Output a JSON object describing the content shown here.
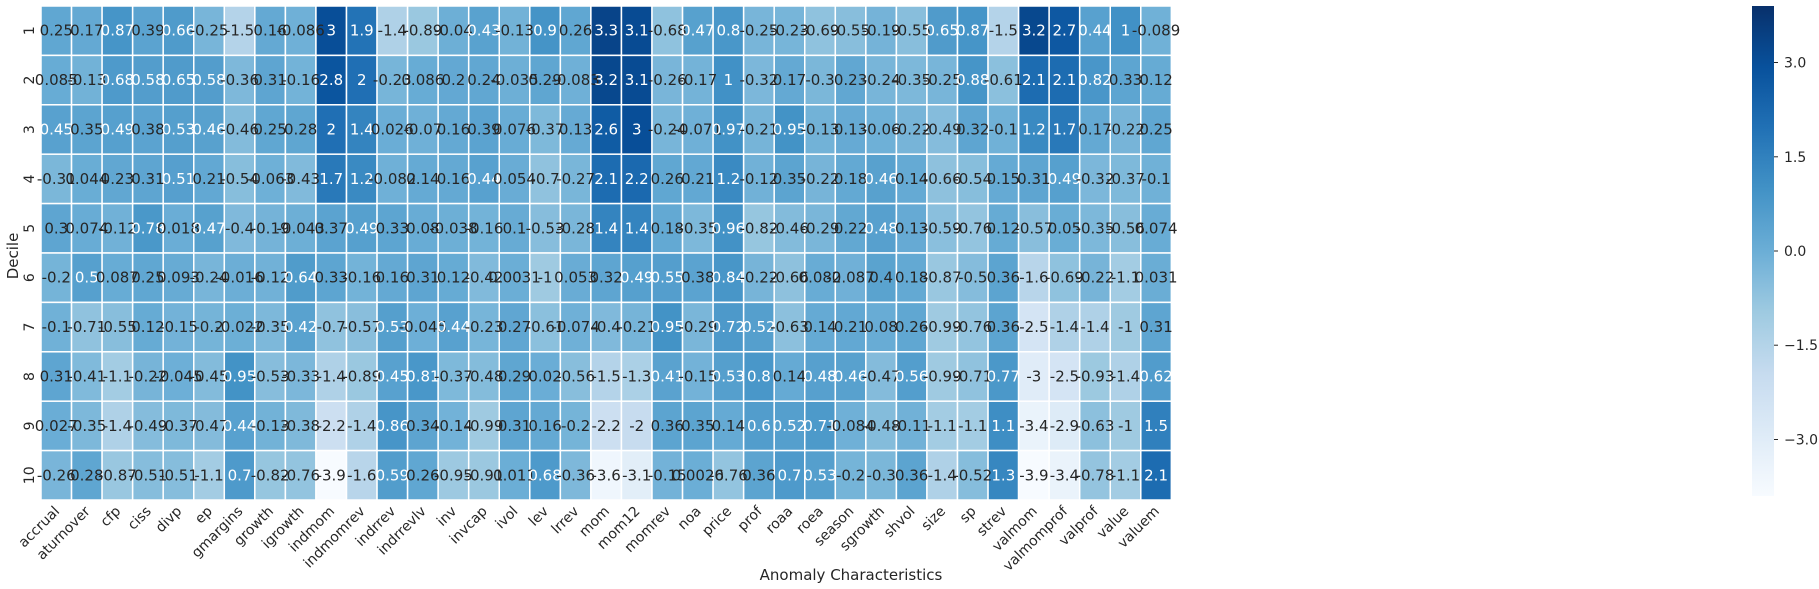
{
  "chart_data": {
    "type": "heatmap",
    "xlabel": "Anomaly Characteristics",
    "ylabel": "Decile",
    "rows": [
      "1",
      "2",
      "3",
      "4",
      "5",
      "6",
      "7",
      "8",
      "9",
      "10"
    ],
    "columns": [
      "accrual",
      "aturnover",
      "cfp",
      "ciss",
      "divp",
      "ep",
      "gmargins",
      "growth",
      "igrowth",
      "indmom",
      "indmomrev",
      "indrrev",
      "indrrevlv",
      "inv",
      "invcap",
      "ivol",
      "lev",
      "lrrev",
      "mom",
      "mom12",
      "momrev",
      "noa",
      "price",
      "prof",
      "roaa",
      "roea",
      "season",
      "sgrowth",
      "shvol",
      "size",
      "sp",
      "strev",
      "valmom",
      "valmomprof",
      "valprof",
      "value",
      "valuem"
    ],
    "values": [
      [
        0.25,
        0.17,
        0.87,
        0.39,
        0.66,
        -0.25,
        -1.5,
        0.16,
        -0.086,
        3,
        1.9,
        -1.4,
        -0.89,
        -0.04,
        0.43,
        -0.13,
        0.9,
        0.26,
        3.3,
        3.1,
        -0.68,
        0.47,
        0.8,
        -0.25,
        -0.23,
        -0.69,
        -0.55,
        -0.19,
        -0.55,
        0.65,
        0.87,
        -1.5,
        3.2,
        2.7,
        0.44,
        1,
        -0.089
      ],
      [
        0.085,
        -0.13,
        0.68,
        0.58,
        0.65,
        0.58,
        -0.36,
        0.31,
        -0.16,
        2.8,
        2,
        -0.23,
        0.086,
        0.2,
        0.24,
        -0.035,
        0.29,
        -0.083,
        3.2,
        3.1,
        -0.26,
        -0.17,
        1,
        -0.32,
        0.17,
        -0.3,
        0.23,
        -0.24,
        -0.35,
        -0.25,
        0.88,
        -0.61,
        2.1,
        2.1,
        0.82,
        0.33,
        0.12
      ],
      [
        0.45,
        0.35,
        0.49,
        0.38,
        0.53,
        0.46,
        -0.46,
        0.25,
        0.28,
        2,
        1.4,
        0.026,
        -0.07,
        0.16,
        0.39,
        0.076,
        -0.37,
        0.13,
        2.6,
        3,
        -0.24,
        -0.071,
        0.97,
        -0.21,
        0.95,
        -0.13,
        0.13,
        -0.06,
        -0.22,
        -0.49,
        0.32,
        -0.1,
        1.2,
        1.7,
        0.17,
        -0.22,
        0.25
      ],
      [
        -0.31,
        0.044,
        0.23,
        0.31,
        0.51,
        0.21,
        -0.54,
        -0.063,
        -0.43,
        1.7,
        1.2,
        -0.082,
        0.14,
        0.16,
        0.44,
        0.054,
        -0.7,
        -0.27,
        2.1,
        2.2,
        0.26,
        0.21,
        1.2,
        -0.12,
        0.35,
        -0.22,
        0.18,
        0.46,
        0.14,
        -0.66,
        -0.54,
        0.15,
        0.31,
        0.49,
        -0.32,
        -0.37,
        -0.1
      ],
      [
        0.3,
        0.074,
        -0.12,
        0.78,
        0.018,
        0.47,
        -0.4,
        -0.19,
        -0.043,
        0.37,
        0.49,
        0.33,
        0.08,
        -0.038,
        -0.16,
        0.1,
        -0.53,
        -0.28,
        1.4,
        1.4,
        0.18,
        -0.35,
        0.96,
        -0.82,
        -0.46,
        -0.29,
        0.22,
        0.48,
        0.13,
        -0.59,
        -0.76,
        0.12,
        -0.57,
        0.05,
        -0.35,
        -0.56,
        0.074
      ],
      [
        -0.2,
        0.5,
        0.087,
        0.25,
        0.093,
        -0.24,
        -0.016,
        -0.12,
        0.64,
        0.33,
        -0.16,
        0.16,
        0.31,
        0.12,
        -0.42,
        0.0031,
        -1,
        0.053,
        0.32,
        0.49,
        0.55,
        0.38,
        0.84,
        -0.22,
        -0.66,
        0.082,
        -0.087,
        0.4,
        0.18,
        -0.87,
        -0.5,
        0.36,
        -1.6,
        -0.69,
        -0.22,
        -1.1,
        0.031
      ],
      [
        -0.1,
        -0.71,
        -0.55,
        0.12,
        -0.15,
        -0.2,
        -0.022,
        -0.35,
        0.42,
        -0.7,
        -0.57,
        0.53,
        -0.045,
        0.44,
        -0.23,
        0.27,
        -0.61,
        -0.074,
        -0.4,
        -0.21,
        0.95,
        -0.29,
        0.72,
        0.52,
        -0.63,
        0.14,
        0.21,
        0.08,
        0.26,
        -0.99,
        -0.76,
        0.36,
        -2.5,
        -1.4,
        -1.4,
        -1,
        0.31
      ],
      [
        0.31,
        -0.41,
        -1.1,
        -0.22,
        -0.045,
        -0.45,
        0.95,
        -0.53,
        -0.33,
        -1.4,
        -0.89,
        0.45,
        0.81,
        -0.37,
        -0.48,
        0.29,
        0.02,
        -0.56,
        -1.5,
        -1.3,
        0.41,
        -0.15,
        0.53,
        0.8,
        0.14,
        0.48,
        0.46,
        -0.47,
        0.56,
        -0.99,
        -0.71,
        0.77,
        -3,
        -2.5,
        -0.93,
        -1.4,
        0.62
      ],
      [
        0.027,
        -0.35,
        -1.4,
        -0.49,
        -0.37,
        -0.47,
        0.44,
        -0.13,
        -0.38,
        -2.2,
        -1.4,
        0.86,
        0.34,
        -0.14,
        -0.99,
        0.31,
        0.16,
        -0.2,
        -2.2,
        -2,
        0.36,
        0.35,
        0.14,
        0.6,
        0.52,
        0.71,
        -0.084,
        -0.48,
        -0.11,
        -1.1,
        -1.1,
        1.1,
        -3.4,
        -2.9,
        -0.63,
        -1,
        1.5
      ],
      [
        -0.26,
        0.28,
        -0.87,
        -0.51,
        -0.51,
        -1.1,
        0.7,
        -0.82,
        -0.76,
        -3.9,
        -1.6,
        0.59,
        0.26,
        -0.95,
        -0.91,
        0.011,
        0.68,
        -0.36,
        -3.6,
        -3.1,
        -0.15,
        0.0026,
        -0.76,
        0.36,
        0.7,
        0.53,
        -0.2,
        -0.3,
        0.36,
        -1.4,
        -0.52,
        1.3,
        -3.9,
        -3.4,
        -0.78,
        -1.1,
        2.1
      ]
    ],
    "value_labels": [
      [
        "0.25",
        "0.17",
        "0.87",
        "0.39",
        "0.66",
        "-0.25",
        "-1.5",
        "0.16",
        "-0.086",
        "3",
        "1.9",
        "-1.4",
        "-0.89",
        "-0.04",
        "0.43",
        "-0.13",
        "0.9",
        "0.26",
        "3.3",
        "3.1",
        "-0.68",
        "0.47",
        "0.8",
        "-0.25",
        "-0.23",
        "-0.69",
        "-0.55",
        "-0.19",
        "-0.55",
        "0.65",
        "0.87",
        "-1.5",
        "3.2",
        "2.7",
        "0.44",
        "1",
        "-0.089"
      ],
      [
        "0.085",
        "-0.13",
        "0.68",
        "0.58",
        "0.65",
        "0.58",
        "-0.36",
        "0.31",
        "-0.16",
        "2.8",
        "2",
        "-0.23",
        "0.086",
        "0.2",
        "0.24",
        "-0.035",
        "0.29",
        "-0.083",
        "3.2",
        "3.1",
        "-0.26",
        "-0.17",
        "1",
        "-0.32",
        "0.17",
        "-0.3",
        "0.23",
        "-0.24",
        "-0.35",
        "-0.25",
        "0.88",
        "-0.61",
        "2.1",
        "2.1",
        "0.82",
        "0.33",
        "0.12"
      ],
      [
        "0.45",
        "0.35",
        "0.49",
        "0.38",
        "0.53",
        "0.46",
        "-0.46",
        "0.25",
        "0.28",
        "2",
        "1.4",
        "0.026",
        "-0.07",
        "0.16",
        "0.39",
        "0.076",
        "-0.37",
        "0.13",
        "2.6",
        "3",
        "-0.24",
        "-0.071",
        "0.97",
        "-0.21",
        "0.95",
        "-0.13",
        "0.13",
        "-0.06",
        "-0.22",
        "-0.49",
        "0.32",
        "-0.1",
        "1.2",
        "1.7",
        "0.17",
        "-0.22",
        "0.25"
      ],
      [
        "-0.31",
        "0.044",
        "0.23",
        "0.31",
        "0.51",
        "0.21",
        "-0.54",
        "-0.063",
        "-0.43",
        "1.7",
        "1.2",
        "-0.082",
        "0.14",
        "0.16",
        "0.44",
        "0.054",
        "-0.7",
        "-0.27",
        "2.1",
        "2.2",
        "0.26",
        "0.21",
        "1.2",
        "-0.12",
        "0.35",
        "-0.22",
        "0.18",
        "0.46",
        "0.14",
        "-0.66",
        "-0.54",
        "0.15",
        "0.31",
        "0.49",
        "-0.32",
        "-0.37",
        "-0.1"
      ],
      [
        "0.3",
        "0.074",
        "-0.12",
        "0.78",
        "0.018",
        "0.47",
        "-0.4",
        "-0.19",
        "-0.043",
        "0.37",
        "0.49",
        "0.33",
        "0.08",
        "-0.038",
        "-0.16",
        "0.1",
        "-0.53",
        "-0.28",
        "1.4",
        "1.4",
        "0.18",
        "-0.35",
        "0.96",
        "-0.82",
        "-0.46",
        "-0.29",
        "0.22",
        "0.48",
        "0.13",
        "-0.59",
        "-0.76",
        "0.12",
        "-0.57",
        "0.05",
        "-0.35",
        "-0.56",
        "0.074"
      ],
      [
        "-0.2",
        "0.5",
        "0.087",
        "0.25",
        "0.093",
        "-0.24",
        "-0.016",
        "-0.12",
        "0.64",
        "0.33",
        "-0.16",
        "0.16",
        "0.31",
        "0.12",
        "-0.42",
        "0.0031",
        "-1",
        "0.053",
        "0.32",
        "0.49",
        "0.55",
        "0.38",
        "0.84",
        "-0.22",
        "-0.66",
        "0.082",
        "-0.087",
        "0.4",
        "0.18",
        "-0.87",
        "-0.5",
        "0.36",
        "-1.6",
        "-0.69",
        "-0.22",
        "-1.1",
        "0.031"
      ],
      [
        "-0.1",
        "-0.71",
        "-0.55",
        "0.12",
        "-0.15",
        "-0.2",
        "-0.022",
        "-0.35",
        "0.42",
        "-0.7",
        "-0.57",
        "0.53",
        "-0.045",
        "0.44",
        "-0.23",
        "0.27",
        "-0.61",
        "-0.074",
        "-0.4",
        "-0.21",
        "0.95",
        "-0.29",
        "0.72",
        "0.52",
        "-0.63",
        "0.14",
        "0.21",
        "0.08",
        "0.26",
        "-0.99",
        "-0.76",
        "0.36",
        "-2.5",
        "-1.4",
        "-1.4",
        "-1",
        "0.31"
      ],
      [
        "0.31",
        "-0.41",
        "-1.1",
        "-0.22",
        "-0.045",
        "-0.45",
        "0.95",
        "-0.53",
        "-0.33",
        "-1.4",
        "-0.89",
        "0.45",
        "0.81",
        "-0.37",
        "-0.48",
        "0.29",
        "0.02",
        "-0.56",
        "-1.5",
        "-1.3",
        "0.41",
        "-0.15",
        "0.53",
        "0.8",
        "0.14",
        "0.48",
        "0.46",
        "-0.47",
        "0.56",
        "-0.99",
        "-0.71",
        "0.77",
        "-3",
        "-2.5",
        "-0.93",
        "-1.4",
        "0.62"
      ],
      [
        "0.027",
        "-0.35",
        "-1.4",
        "-0.49",
        "-0.37",
        "-0.47",
        "0.44",
        "-0.13",
        "-0.38",
        "-2.2",
        "-1.4",
        "0.86",
        "0.34",
        "-0.14",
        "-0.99",
        "0.31",
        "0.16",
        "-0.2",
        "-2.2",
        "-2",
        "0.36",
        "0.35",
        "0.14",
        "0.6",
        "0.52",
        "0.71",
        "-0.084",
        "-0.48",
        "-0.11",
        "-1.1",
        "-1.1",
        "1.1",
        "-3.4",
        "-2.9",
        "-0.63",
        "-1",
        "1.5"
      ],
      [
        "-0.26",
        "0.28",
        "-0.87",
        "-0.51",
        "-0.51",
        "-1.1",
        "0.7",
        "-0.82",
        "-0.76",
        "-3.9",
        "-1.6",
        "0.59",
        "0.26",
        "-0.95",
        "-0.91",
        "0.011",
        "0.68",
        "-0.36",
        "-3.6",
        "-3.1",
        "-0.15",
        "0.0026",
        "-0.76",
        "0.36",
        "0.7",
        "0.53",
        "-0.2",
        "-0.3",
        "0.36",
        "-1.4",
        "-0.52",
        "1.3",
        "-3.9",
        "-3.4",
        "-0.78",
        "-1.1",
        "2.1"
      ]
    ],
    "colorbar": {
      "vmin": -3.9,
      "vmax": 3.9,
      "ticks": [
        3.0,
        1.5,
        0.0,
        -1.5,
        -3.0
      ],
      "tick_labels": [
        "3.0",
        "1.5",
        "0.0",
        "−1.5",
        "−3.0"
      ]
    },
    "colormap": "Blues",
    "colors": {
      "low": "#f7fbff",
      "high": "#08306b",
      "text_dark": "#262626",
      "text_light": "#ffffff",
      "grid": "#ffffff"
    }
  }
}
